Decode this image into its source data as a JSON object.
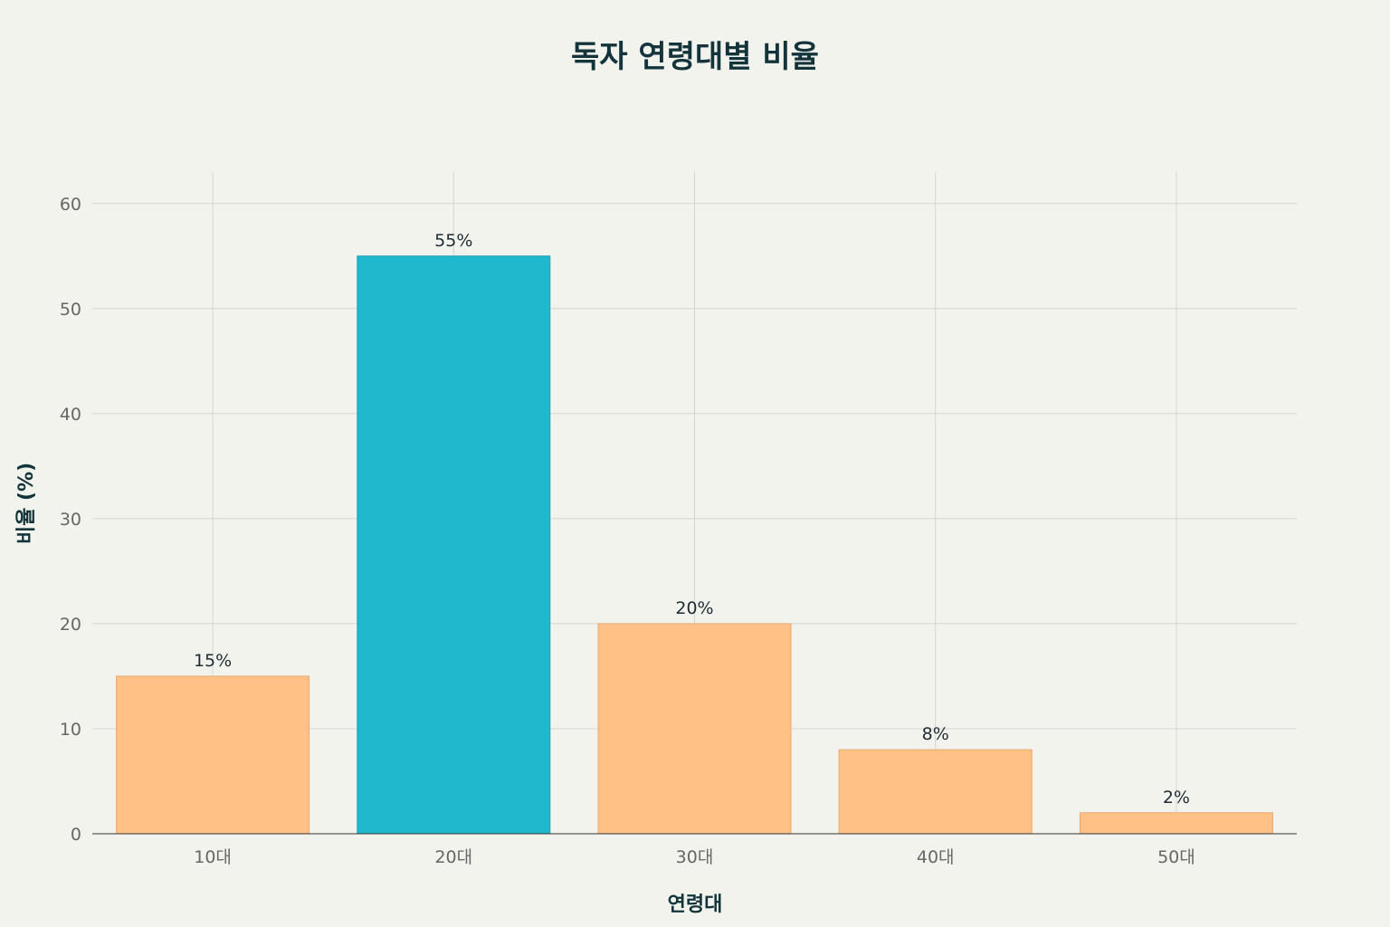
{
  "chart_data": {
    "type": "bar",
    "title": "독자 연령대별 비율",
    "xlabel": "연령대",
    "ylabel": "비율 (%)",
    "categories": [
      "10대",
      "20대",
      "30대",
      "40대",
      "50대"
    ],
    "values": [
      15,
      55,
      20,
      8,
      2
    ],
    "data_labels": [
      "15%",
      "55%",
      "20%",
      "8%",
      "2%"
    ],
    "ylim": [
      0,
      63
    ],
    "yticks": [
      0,
      10,
      20,
      30,
      40,
      50,
      60
    ],
    "grid": true,
    "colors": {
      "default_bar": "#ffc185",
      "default_bar_stroke": "#e8a874",
      "highlight_bar": "#1fb8cd",
      "highlight_bar_stroke": "#17a2b5",
      "highlight_index": 1
    }
  }
}
